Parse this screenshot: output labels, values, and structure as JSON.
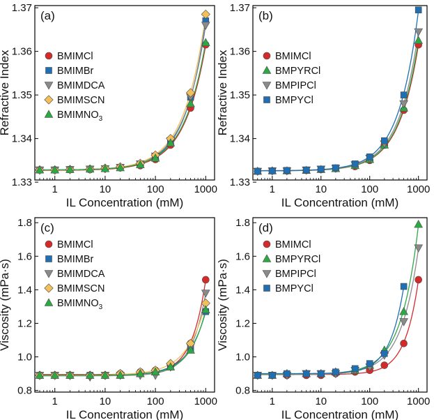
{
  "figure": {
    "colors": {
      "BMIMCl": "#d42a2a",
      "BMIMBr": "#1f6fb2",
      "BMIMDCA": "#8a8a8a",
      "BMIMSCN": "#f2c05a",
      "BMIMNO3": "#2ca844",
      "BMPYRCl": "#2ca844",
      "BMPIPCl": "#8a8a8a",
      "BMPYCl": "#1f6fb2"
    }
  },
  "chart_data": [
    {
      "id": "a",
      "panel_label": "(a)",
      "type": "scatter",
      "xscale": "log",
      "xlabel": "IL Concentration (mM)",
      "ylabel": "Refractive Index",
      "xlim": [
        0.4,
        1500
      ],
      "ylim": [
        1.3305,
        1.3705
      ],
      "xticks": [
        1,
        10,
        100,
        1000
      ],
      "xtick_labels": [
        "1",
        "10",
        "100",
        "1000"
      ],
      "yticks": [
        1.33,
        1.34,
        1.35,
        1.36,
        1.37
      ],
      "ytick_labels": [
        "1.33",
        "1.34",
        "1.35",
        "1.36",
        "1.37"
      ],
      "legend_position": "left",
      "series": [
        {
          "name": "BMIMCl",
          "label": "BMIMCl",
          "marker": "circle",
          "color": "#d42a2a",
          "x": [
            0.5,
            1,
            2,
            5,
            10,
            20,
            50,
            100,
            200,
            500,
            1000
          ],
          "y": [
            1.3328,
            1.3328,
            1.3329,
            1.3329,
            1.3331,
            1.3333,
            1.3338,
            1.3352,
            1.3385,
            1.347,
            1.3615
          ]
        },
        {
          "name": "BMIMBr",
          "label": "BMIMBr",
          "marker": "square",
          "color": "#1f6fb2",
          "x": [
            0.5,
            1,
            2,
            5,
            10,
            20,
            50,
            100,
            200,
            500,
            1000
          ],
          "y": [
            1.3328,
            1.3328,
            1.3329,
            1.333,
            1.3331,
            1.3334,
            1.3341,
            1.3358,
            1.3392,
            1.3495,
            1.367
          ]
        },
        {
          "name": "BMIMDCA",
          "label": "BMIMDCA",
          "marker": "triangle-down",
          "color": "#8a8a8a",
          "x": [
            0.5,
            1,
            2,
            5,
            10,
            20,
            50,
            100,
            200,
            500,
            1000
          ],
          "y": [
            1.3328,
            1.3328,
            1.3329,
            1.333,
            1.3331,
            1.3334,
            1.3342,
            1.336,
            1.3395,
            1.3495,
            1.366
          ]
        },
        {
          "name": "BMIMSCN",
          "label": "BMIMSCN",
          "marker": "diamond",
          "color": "#f2c05a",
          "x": [
            0.5,
            1,
            2,
            5,
            10,
            20,
            50,
            100,
            200,
            500,
            1000
          ],
          "y": [
            1.3328,
            1.3328,
            1.3329,
            1.333,
            1.3332,
            1.3335,
            1.3343,
            1.3362,
            1.34,
            1.3505,
            1.3685
          ]
        },
        {
          "name": "BMIMNO3",
          "label": "BMIMNO",
          "label_sub": "3",
          "marker": "triangle-up",
          "color": "#2ca844",
          "x": [
            0.5,
            1,
            2,
            5,
            10,
            20,
            50,
            100,
            200,
            500,
            1000
          ],
          "y": [
            1.3328,
            1.3328,
            1.3329,
            1.333,
            1.3331,
            1.3333,
            1.334,
            1.3355,
            1.339,
            1.348,
            1.362
          ]
        }
      ]
    },
    {
      "id": "b",
      "panel_label": "(b)",
      "type": "scatter",
      "xscale": "log",
      "xlabel": "IL Concentration (mM)",
      "ylabel": "Refractive Index",
      "xlim": [
        0.4,
        1500
      ],
      "ylim": [
        1.3305,
        1.3705
      ],
      "xticks": [
        1,
        10,
        100,
        1000
      ],
      "xtick_labels": [
        "1",
        "10",
        "100",
        "1000"
      ],
      "yticks": [
        1.33,
        1.34,
        1.35,
        1.36,
        1.37
      ],
      "ytick_labels": [
        "1.33",
        "1.34",
        "1.35",
        "1.36",
        "1.37"
      ],
      "legend_position": "left",
      "series": [
        {
          "name": "BMIMCl",
          "label": "BMIMCl",
          "marker": "circle",
          "color": "#d42a2a",
          "x": [
            0.5,
            1,
            2,
            5,
            10,
            20,
            50,
            100,
            200,
            500,
            1000
          ],
          "y": [
            1.3325,
            1.3326,
            1.3326,
            1.3327,
            1.3329,
            1.3331,
            1.3336,
            1.335,
            1.3385,
            1.3465,
            1.3615
          ]
        },
        {
          "name": "BMPYRCl",
          "label": "BMPYRCl",
          "marker": "triangle-up",
          "color": "#2ca844",
          "x": [
            0.5,
            1,
            2,
            5,
            10,
            20,
            50,
            100,
            200,
            500,
            1000
          ],
          "y": [
            1.3325,
            1.3326,
            1.3326,
            1.3327,
            1.3329,
            1.3331,
            1.3338,
            1.3352,
            1.3385,
            1.347,
            1.3625
          ]
        },
        {
          "name": "BMPIPCl",
          "label": "BMPIPCl",
          "marker": "triangle-down",
          "color": "#8a8a8a",
          "x": [
            0.5,
            1,
            2,
            5,
            10,
            20,
            50,
            100,
            200,
            500,
            1000
          ],
          "y": [
            1.3325,
            1.3326,
            1.3326,
            1.3328,
            1.333,
            1.3332,
            1.334,
            1.3355,
            1.3388,
            1.348,
            1.3645
          ]
        },
        {
          "name": "BMPYCl",
          "label": "BMPYCl",
          "marker": "square",
          "color": "#1f6fb2",
          "x": [
            0.5,
            1,
            2,
            5,
            10,
            20,
            50,
            100,
            200,
            500,
            1000
          ],
          "y": [
            1.3325,
            1.3326,
            1.3327,
            1.3328,
            1.333,
            1.3333,
            1.3342,
            1.3358,
            1.3395,
            1.35,
            1.3695
          ]
        }
      ]
    },
    {
      "id": "c",
      "panel_label": "(c)",
      "type": "scatter",
      "xscale": "log",
      "xlabel": "IL Concentration (mM)",
      "ylabel": "Viscosity (mPa·s)",
      "xlim": [
        0.4,
        1500
      ],
      "ylim": [
        0.79,
        1.83
      ],
      "xticks": [
        1,
        10,
        100,
        1000
      ],
      "xtick_labels": [
        "1",
        "10",
        "100",
        "1000"
      ],
      "yticks": [
        0.8,
        1.0,
        1.2,
        1.4,
        1.6,
        1.8
      ],
      "ytick_labels": [
        "0.8",
        "1.0",
        "1.2",
        "1.4",
        "1.6",
        "1.8"
      ],
      "legend_position": "left",
      "series": [
        {
          "name": "BMIMCl",
          "label": "BMIMCl",
          "marker": "circle",
          "color": "#d42a2a",
          "x": [
            0.5,
            1,
            2,
            5,
            10,
            20,
            50,
            100,
            200,
            500,
            1000
          ],
          "y": [
            0.89,
            0.89,
            0.89,
            0.89,
            0.89,
            0.9,
            0.91,
            0.92,
            0.95,
            1.08,
            1.46
          ]
        },
        {
          "name": "BMIMBr",
          "label": "BMIMBr",
          "marker": "square",
          "color": "#1f6fb2",
          "x": [
            0.5,
            1,
            2,
            5,
            10,
            20,
            50,
            100,
            200,
            500,
            1000
          ],
          "y": [
            0.89,
            0.89,
            0.89,
            0.89,
            0.89,
            0.89,
            0.9,
            0.91,
            0.94,
            1.05,
            1.27
          ]
        },
        {
          "name": "BMIMDCA",
          "label": "BMIMDCA",
          "marker": "triangle-down",
          "color": "#8a8a8a",
          "x": [
            0.5,
            1,
            2,
            5,
            10,
            20,
            50,
            100,
            200,
            500,
            1000
          ],
          "y": [
            0.89,
            0.89,
            0.89,
            0.88,
            0.89,
            0.89,
            0.89,
            0.89,
            0.94,
            1.06,
            1.38
          ]
        },
        {
          "name": "BMIMSCN",
          "label": "BMIMSCN",
          "marker": "diamond",
          "color": "#f2c05a",
          "x": [
            0.5,
            1,
            2,
            5,
            10,
            20,
            50,
            100,
            200,
            500,
            1000
          ],
          "y": [
            0.89,
            0.89,
            0.89,
            0.89,
            0.89,
            0.9,
            0.91,
            0.92,
            0.96,
            1.08,
            1.32
          ]
        },
        {
          "name": "BMIMNO3",
          "label": "BMIMNO",
          "label_sub": "3",
          "marker": "triangle-up",
          "color": "#2ca844",
          "x": [
            0.5,
            1,
            2,
            5,
            10,
            20,
            50,
            100,
            200,
            500,
            1000
          ],
          "y": [
            0.89,
            0.89,
            0.89,
            0.89,
            0.89,
            0.89,
            0.9,
            0.91,
            0.94,
            1.04,
            1.28
          ]
        }
      ]
    },
    {
      "id": "d",
      "panel_label": "(d)",
      "type": "scatter",
      "xscale": "log",
      "xlabel": "IL Concentration (mM)",
      "ylabel": "Viscosity (mPa·s)",
      "xlim": [
        0.4,
        1500
      ],
      "ylim": [
        0.79,
        1.83
      ],
      "xticks": [
        1,
        10,
        100,
        1000
      ],
      "xtick_labels": [
        "1",
        "10",
        "100",
        "1000"
      ],
      "yticks": [
        0.8,
        1.0,
        1.2,
        1.4,
        1.6,
        1.8
      ],
      "ytick_labels": [
        "0.8",
        "1.0",
        "1.2",
        "1.4",
        "1.6",
        "1.8"
      ],
      "legend_position": "left",
      "series": [
        {
          "name": "BMIMCl",
          "label": "BMIMCl",
          "marker": "circle",
          "color": "#d42a2a",
          "x": [
            0.5,
            1,
            2,
            5,
            10,
            20,
            50,
            100,
            200,
            500,
            1000
          ],
          "y": [
            0.89,
            0.89,
            0.89,
            0.89,
            0.89,
            0.9,
            0.91,
            0.92,
            0.95,
            1.08,
            1.46
          ]
        },
        {
          "name": "BMPYRCl",
          "label": "BMPYRCl",
          "marker": "triangle-up",
          "color": "#2ca844",
          "x": [
            0.5,
            1,
            2,
            5,
            10,
            20,
            50,
            100,
            200,
            500,
            1000
          ],
          "y": [
            0.89,
            0.89,
            0.9,
            0.9,
            0.9,
            0.91,
            0.92,
            0.95,
            1.04,
            1.27,
            1.79
          ]
        },
        {
          "name": "BMPIPCl",
          "label": "BMPIPCl",
          "marker": "triangle-down",
          "color": "#8a8a8a",
          "x": [
            0.5,
            1,
            2,
            5,
            10,
            20,
            50,
            100,
            200,
            500,
            1000
          ],
          "y": [
            0.89,
            0.89,
            0.89,
            0.9,
            0.9,
            0.9,
            0.92,
            0.94,
            1.01,
            1.21,
            1.65
          ]
        },
        {
          "name": "BMPYCl",
          "label": "BMPYCl",
          "marker": "square",
          "color": "#1f6fb2",
          "x": [
            0.5,
            1,
            2,
            5,
            10,
            20,
            50,
            100,
            200,
            500
          ],
          "y": [
            0.89,
            0.89,
            0.9,
            0.9,
            0.9,
            0.91,
            0.93,
            0.96,
            1.02,
            1.42
          ]
        }
      ]
    }
  ]
}
